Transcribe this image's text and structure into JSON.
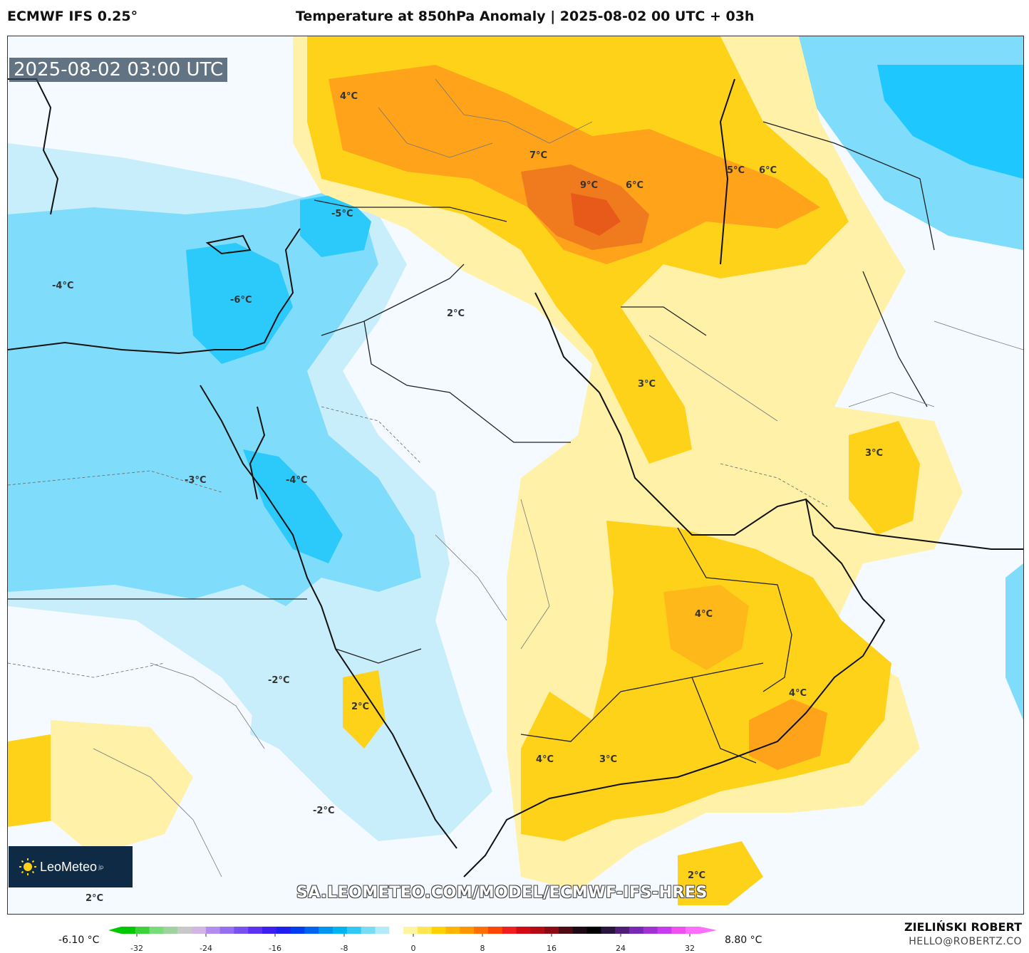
{
  "header": {
    "model": "ECMWF IFS 0.25°",
    "title": "Temperature at 850hPa Anomaly | 2025-08-02 00 UTC + 03h"
  },
  "map": {
    "valid_time": "2025-08-02 03:00 UTC",
    "labels": [
      {
        "text": "4°C"
      },
      {
        "text": "7°C"
      },
      {
        "text": "9°C"
      },
      {
        "text": "6°C"
      },
      {
        "text": "5°C"
      },
      {
        "text": "6°C"
      },
      {
        "text": "-5°C"
      },
      {
        "text": "-4°C"
      },
      {
        "text": "-6°C"
      },
      {
        "text": "2°C"
      },
      {
        "text": "3°C"
      },
      {
        "text": "3°C"
      },
      {
        "text": "-3°C"
      },
      {
        "text": "-4°C"
      },
      {
        "text": "4°C"
      },
      {
        "text": "-2°C"
      },
      {
        "text": "2°C"
      },
      {
        "text": "4°C"
      },
      {
        "text": "4°C"
      },
      {
        "text": "3°C"
      },
      {
        "text": "-2°C"
      },
      {
        "text": "2°C"
      },
      {
        "text": "2°C"
      }
    ],
    "colors": {
      "cold_strong": "#1ec8ff",
      "cold_mid": "#7fdcfa",
      "cold_light": "#c8eefc",
      "warm_light": "#fff1a8",
      "warm_mid": "#ffd21a",
      "warm_strong": "#ffa31a",
      "hot": "#f07a1e"
    }
  },
  "branding": {
    "logo": "LeoMeteo",
    "logo_suffix": "jp",
    "url": "SA.LEOMETEO.COM/MODEL/ECMWF-IFS-HRES",
    "author": "ZIELIŃSKI ROBERT",
    "email": "HELLO@ROBERTZ.CO"
  },
  "legend": {
    "min_label": "-6.10 °C",
    "max_label": "8.80 °C",
    "ticks": [
      "-32",
      "-24",
      "-16",
      "-8",
      "0",
      "8",
      "16",
      "24",
      "32"
    ],
    "colors": [
      "#00c800",
      "#3cd23c",
      "#78dc78",
      "#a0d2a0",
      "#c8c8c8",
      "#d2b4e6",
      "#b48cf0",
      "#966ef0",
      "#7850f0",
      "#5a32f0",
      "#3c1ef0",
      "#1e1ef0",
      "#003cf0",
      "#0064f0",
      "#0096f0",
      "#00b4f0",
      "#32c8f5",
      "#78dcf5",
      "#b4ebfa",
      "#ffffff",
      "#fff5a0",
      "#ffe650",
      "#ffd200",
      "#ffb400",
      "#ff9600",
      "#ff6e00",
      "#ff4600",
      "#f01e1e",
      "#d20a14",
      "#b40a14",
      "#8c0a14",
      "#500a14",
      "#1e0a14",
      "#000000",
      "#28143c",
      "#501e78",
      "#7828b4",
      "#a032d2",
      "#c83cf0",
      "#f050f0",
      "#ff6eff"
    ]
  }
}
